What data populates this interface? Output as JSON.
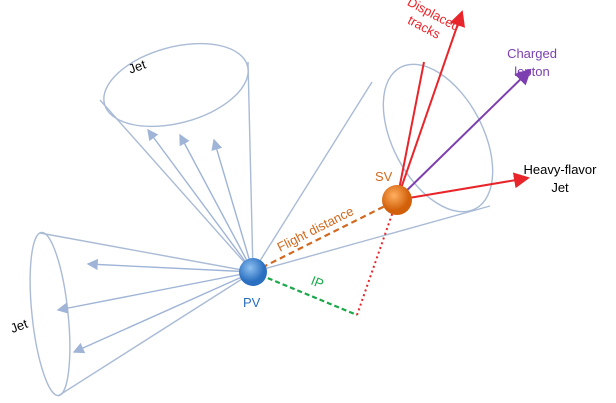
{
  "labels": {
    "displaced_tracks": [
      "Displaced",
      "tracks"
    ],
    "charged_lepton": [
      "Charged",
      "lepton"
    ],
    "heavy_flavor_jet": [
      "Heavy-flavor",
      "Jet"
    ],
    "sv": "SV",
    "pv": "PV",
    "flight_distance": "Flight distance",
    "ip": "IP",
    "jet_top": "Jet",
    "jet_left": "Jet"
  }
}
